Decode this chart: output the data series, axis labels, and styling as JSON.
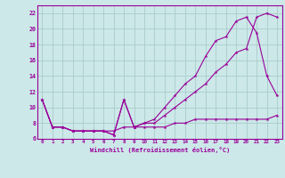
{
  "xlabel": "Windchill (Refroidissement éolien,°C)",
  "bg_color": "#cce8e8",
  "line_color": "#990099",
  "grid_color": "#aacccc",
  "xlim": [
    -0.5,
    23.5
  ],
  "ylim": [
    6,
    23
  ],
  "xticks": [
    0,
    1,
    2,
    3,
    4,
    5,
    6,
    7,
    8,
    9,
    10,
    11,
    12,
    13,
    14,
    15,
    16,
    17,
    18,
    19,
    20,
    21,
    22,
    23
  ],
  "yticks": [
    6,
    8,
    10,
    12,
    14,
    16,
    18,
    20,
    22
  ],
  "series1_x": [
    0,
    1,
    2,
    3,
    4,
    5,
    6,
    7,
    8,
    9,
    10,
    11,
    12,
    13,
    14,
    15,
    16,
    17,
    18,
    19,
    20,
    21,
    22,
    23
  ],
  "series1_y": [
    11,
    7.5,
    7.5,
    7,
    7,
    7,
    7,
    7,
    7.5,
    7.5,
    7.5,
    7.5,
    7.5,
    8,
    8,
    8.5,
    8.5,
    8.5,
    8.5,
    8.5,
    8.5,
    8.5,
    8.5,
    9
  ],
  "series2_x": [
    0,
    1,
    2,
    3,
    4,
    5,
    6,
    7,
    8,
    9,
    10,
    11,
    12,
    13,
    14,
    15,
    16,
    17,
    18,
    19,
    20,
    21,
    22,
    23
  ],
  "series2_y": [
    11,
    7.5,
    7.5,
    7,
    7,
    7,
    7,
    6.5,
    11,
    7.5,
    8,
    8,
    9,
    10,
    11,
    12,
    13,
    14.5,
    15.5,
    17,
    17.5,
    21.5,
    22,
    21.5
  ],
  "series3_x": [
    0,
    1,
    2,
    3,
    4,
    5,
    6,
    7,
    8,
    9,
    10,
    11,
    12,
    13,
    14,
    15,
    16,
    17,
    18,
    19,
    20,
    21,
    22,
    23
  ],
  "series3_y": [
    11,
    7.5,
    7.5,
    7,
    7,
    7,
    7,
    6.5,
    11,
    7.5,
    8,
    8.5,
    10,
    11.5,
    13,
    14,
    16.5,
    18.5,
    19,
    21,
    21.5,
    19.5,
    14,
    11.5
  ],
  "marker": "*",
  "markersize": 3,
  "linewidth": 0.8
}
